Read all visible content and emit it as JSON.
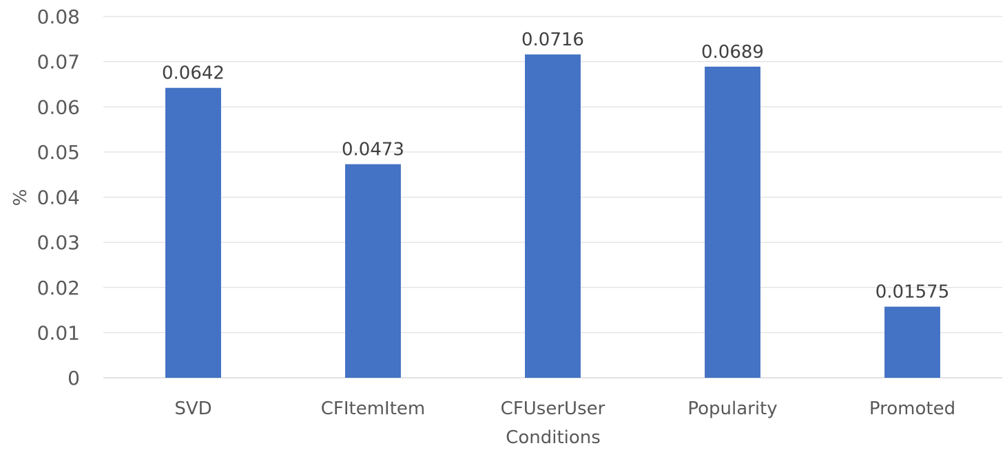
{
  "chart_data": {
    "type": "bar",
    "categories": [
      "SVD",
      "CFItemItem",
      "CFUserUser",
      "Popularity",
      "Promoted"
    ],
    "values": [
      0.0642,
      0.0473,
      0.0716,
      0.0689,
      0.01575
    ],
    "data_labels": [
      "0.0642",
      "0.0473",
      "0.0716",
      "0.0689",
      "0.01575"
    ],
    "xlabel": "Conditions",
    "ylabel": "%",
    "ylim": [
      0,
      0.08
    ],
    "yticks": [
      "0",
      "0.01",
      "0.02",
      "0.03",
      "0.04",
      "0.05",
      "0.06",
      "0.07",
      "0.08"
    ],
    "grid": true,
    "bar_color": "#4472C4"
  }
}
